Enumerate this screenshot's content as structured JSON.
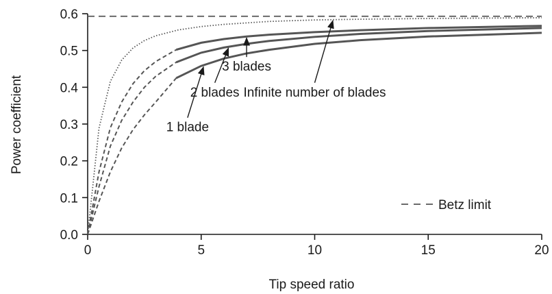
{
  "chart_data": {
    "type": "line",
    "xlabel": "Tip speed ratio",
    "ylabel": "Power coefficient",
    "xlim": [
      0,
      20
    ],
    "ylim": [
      0,
      0.6
    ],
    "xticks": [
      "0",
      "5",
      "10",
      "15",
      "20"
    ],
    "xtick_values": [
      0,
      5,
      10,
      15,
      20
    ],
    "yticks": [
      "0.0",
      "0.1",
      "0.2",
      "0.3",
      "0.4",
      "0.5",
      "0.6"
    ],
    "ytick_values": [
      0,
      0.1,
      0.2,
      0.3,
      0.4,
      0.5,
      0.6
    ],
    "grid": false,
    "legend": {
      "position": "bottom-right",
      "entries": [
        "Betz limit"
      ]
    },
    "series": [
      {
        "name": "Infinite number of blades",
        "style": "dotted",
        "x": [
          0,
          0.5,
          1,
          1.5,
          2,
          2.5,
          3,
          4,
          5,
          6,
          8,
          10,
          12,
          15,
          20
        ],
        "y": [
          0,
          0.289,
          0.416,
          0.474,
          0.507,
          0.527,
          0.54,
          0.556,
          0.565,
          0.571,
          0.579,
          0.583,
          0.585,
          0.587,
          0.589
        ]
      },
      {
        "name": "3 blades",
        "style": "dashed-then-solid",
        "solid_from_x": 3.9,
        "x": [
          0,
          0.5,
          1,
          1.5,
          2,
          2.5,
          3,
          3.9,
          5,
          6,
          7,
          8,
          10,
          12,
          15,
          20
        ],
        "y": [
          0,
          0.17,
          0.29,
          0.36,
          0.41,
          0.445,
          0.47,
          0.502,
          0.521,
          0.531,
          0.538,
          0.543,
          0.55,
          0.555,
          0.561,
          0.567
        ]
      },
      {
        "name": "2 blades",
        "style": "dashed-then-solid",
        "solid_from_x": 3.9,
        "x": [
          0,
          0.5,
          1,
          1.5,
          2,
          2.5,
          3,
          3.9,
          5,
          6,
          7,
          8,
          10,
          12,
          15,
          20
        ],
        "y": [
          0,
          0.13,
          0.24,
          0.31,
          0.36,
          0.4,
          0.43,
          0.468,
          0.494,
          0.508,
          0.518,
          0.526,
          0.537,
          0.545,
          0.553,
          0.561
        ]
      },
      {
        "name": "1 blade",
        "style": "dashed-then-solid",
        "solid_from_x": 3.9,
        "x": [
          0,
          0.5,
          1,
          1.5,
          2,
          2.5,
          3,
          3.9,
          5,
          6,
          7,
          8,
          10,
          12,
          15,
          20
        ],
        "y": [
          0,
          0.09,
          0.17,
          0.235,
          0.285,
          0.325,
          0.36,
          0.425,
          0.458,
          0.478,
          0.492,
          0.502,
          0.518,
          0.528,
          0.538,
          0.548
        ]
      },
      {
        "name": "Betz limit",
        "style": "dashed",
        "x": [
          0,
          20
        ],
        "y": [
          0.593,
          0.593
        ]
      }
    ],
    "annotations": [
      {
        "text": "3 blades",
        "label_at": [
          7.0,
          0.445
        ],
        "arrow_to": [
          7.0,
          0.538
        ]
      },
      {
        "text": "2 blades",
        "label_at": [
          5.6,
          0.375
        ],
        "arrow_to": [
          6.2,
          0.51
        ]
      },
      {
        "text": "1 blade",
        "label_at": [
          4.4,
          0.28
        ],
        "arrow_to": [
          5.1,
          0.459
        ]
      },
      {
        "text": "Infinite number of blades",
        "label_at": [
          10.0,
          0.375
        ],
        "arrow_to": [
          10.8,
          0.585
        ]
      }
    ],
    "colors": {
      "line": "#555555",
      "text": "#1a1a1a",
      "axis": "#1a1a1a"
    }
  }
}
